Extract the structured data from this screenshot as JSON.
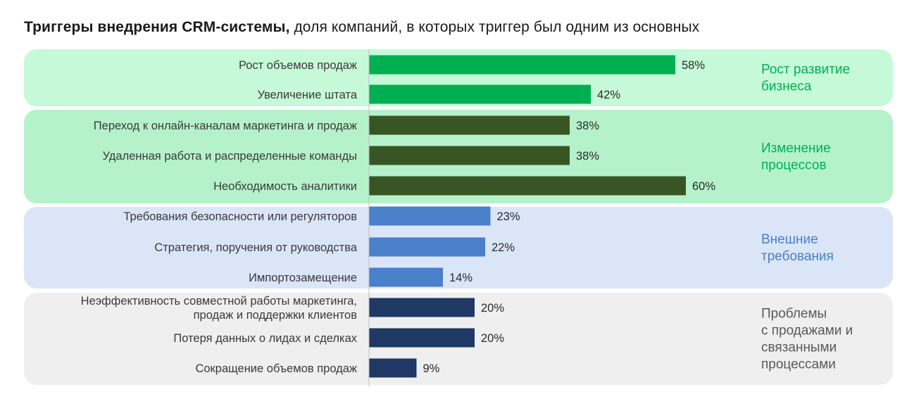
{
  "title": {
    "bold": "Триггеры внедрения CRM-системы,",
    "rest": " доля компаний, в которых триггер был одним из основных"
  },
  "chart_data": {
    "type": "bar",
    "orientation": "horizontal",
    "title": "Триггеры внедрения CRM-системы, доля компаний, в которых триггер был одним из основных",
    "value_unit": "%",
    "xlim": [
      0,
      100
    ],
    "groups": [
      {
        "label": [
          "Рост  развитие",
          "бизнеса"
        ],
        "bg_color": "#c6f9d8",
        "bar_color": "#00b050",
        "label_color": "#00b050",
        "items": [
          {
            "label": [
              "Рост объемов продаж"
            ],
            "value": 58
          },
          {
            "label": [
              "Увеличение штата"
            ],
            "value": 42
          }
        ]
      },
      {
        "label": [
          "Изменение",
          "процессов"
        ],
        "bg_color": "#b5f2cb",
        "bar_color": "#375623",
        "label_color": "#00b050",
        "items": [
          {
            "label": [
              "Переход к онлайн-каналам маркетинга и продаж"
            ],
            "value": 38
          },
          {
            "label": [
              "Удаленная работа и распределенные команды"
            ],
            "value": 38
          },
          {
            "label": [
              "Необходимость аналитики"
            ],
            "value": 60
          }
        ]
      },
      {
        "label": [
          "Внешние",
          "требования"
        ],
        "bg_color": "#dae5f8",
        "bar_color": "#4a7fc9",
        "label_color": "#4a7fc9",
        "items": [
          {
            "label": [
              "Требования безопасности или регуляторов"
            ],
            "value": 23
          },
          {
            "label": [
              "Стратегия, поручения от руководства"
            ],
            "value": 22
          },
          {
            "label": [
              "Импортозамещение"
            ],
            "value": 14
          }
        ]
      },
      {
        "label": [
          "Проблемы",
          "с продажами и",
          "связанными",
          "процессами"
        ],
        "bg_color": "#efefef",
        "bar_color": "#1f3864",
        "label_color": "#595959",
        "items": [
          {
            "label": [
              "Неэффективность совместной работы маркетинга,",
              "продаж и поддержки клиентов"
            ],
            "value": 20
          },
          {
            "label": [
              "Потеря данных о лидах и сделках"
            ],
            "value": 20
          },
          {
            "label": [
              "Сокращение объемов продаж"
            ],
            "value": 9
          }
        ]
      }
    ]
  }
}
